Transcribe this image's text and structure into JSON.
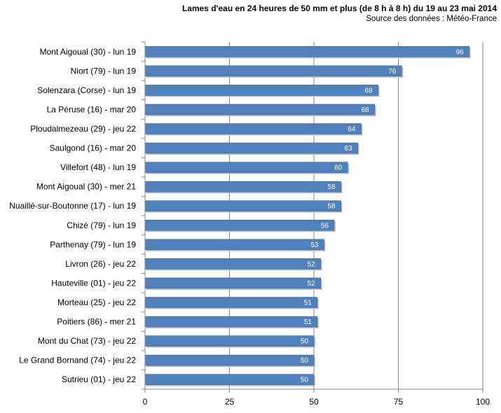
{
  "chart_data": {
    "type": "bar",
    "orientation": "horizontal",
    "title": "Lames d'eau en 24 heures de 50 mm et plus (de 8 h à 8 h) du 19 au 23 mai 2014",
    "subtitle": "Source des données : Météo-France",
    "categories": [
      "Mont Aigoual (30) - lun 19",
      "Niort (79) - lun 19",
      "Solenzara (Corse) - lun 19",
      "La Péruse (16) - mar 20",
      "Ploudalmezeau (29) - jeu 22",
      "Saulgond (16) - mar 20",
      "Villefort (48) - lun 19",
      "Mont Aigoual (30) - mer 21",
      "Nuaillé-sur-Boutonne (17) - lun 19",
      "Chizé (79) - lun 19",
      "Parthenay (79) - lun 19",
      "Livron (26) - jeu 22",
      "Hauteville (01) - jeu 22",
      "Morteau (25) - jeu 22",
      "Poitiers (86) - mer 21",
      "Mont du Chat (73) - jeu 22",
      "Le Grand Bornand (74) - jeu 22",
      "Sutrieu (01) - jeu 22"
    ],
    "values": [
      96,
      76,
      69,
      68,
      64,
      63,
      60,
      58,
      58,
      56,
      53,
      52,
      52,
      51,
      51,
      50,
      50,
      50
    ],
    "xlim": [
      0,
      100
    ],
    "ticks": [
      0,
      25,
      50,
      75,
      100
    ],
    "grid": "vertical",
    "data_labels": true,
    "colors": {
      "bar": "#4F81BD",
      "bar_edge": "#3B6496",
      "grid": "#878787",
      "axis": "#878787"
    }
  }
}
